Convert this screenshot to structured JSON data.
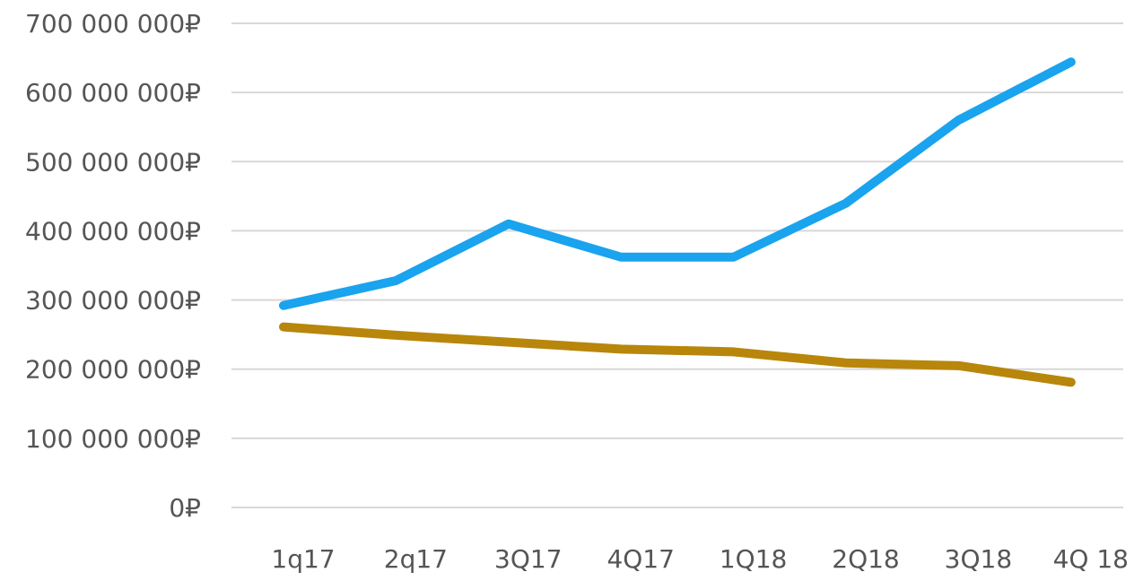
{
  "chart_data": {
    "type": "line",
    "categories": [
      "1q17",
      "2q17",
      "3Q17",
      "4Q17",
      "1Q18",
      "2Q18",
      "3Q18",
      "4Q 18"
    ],
    "ylim": [
      0,
      700000000
    ],
    "yticks": [
      0,
      100000000,
      200000000,
      300000000,
      400000000,
      500000000,
      600000000,
      700000000
    ],
    "ytick_labels": [
      "0₽",
      "100 000 000₽",
      "200 000 000₽",
      "300 000 000₽",
      "400 000 000₽",
      "500 000 000₽",
      "600 000 000₽",
      "700 000 000₽"
    ],
    "grid": true,
    "series": [
      {
        "color": "#1aa3ee",
        "values": [
          292000000,
          328000000,
          410000000,
          362000000,
          362000000,
          440000000,
          560000000,
          644000000
        ]
      },
      {
        "color": "#b8860b",
        "values": [
          261000000,
          249000000,
          239000000,
          229000000,
          225000000,
          209000000,
          205000000,
          181000000
        ]
      }
    ]
  }
}
